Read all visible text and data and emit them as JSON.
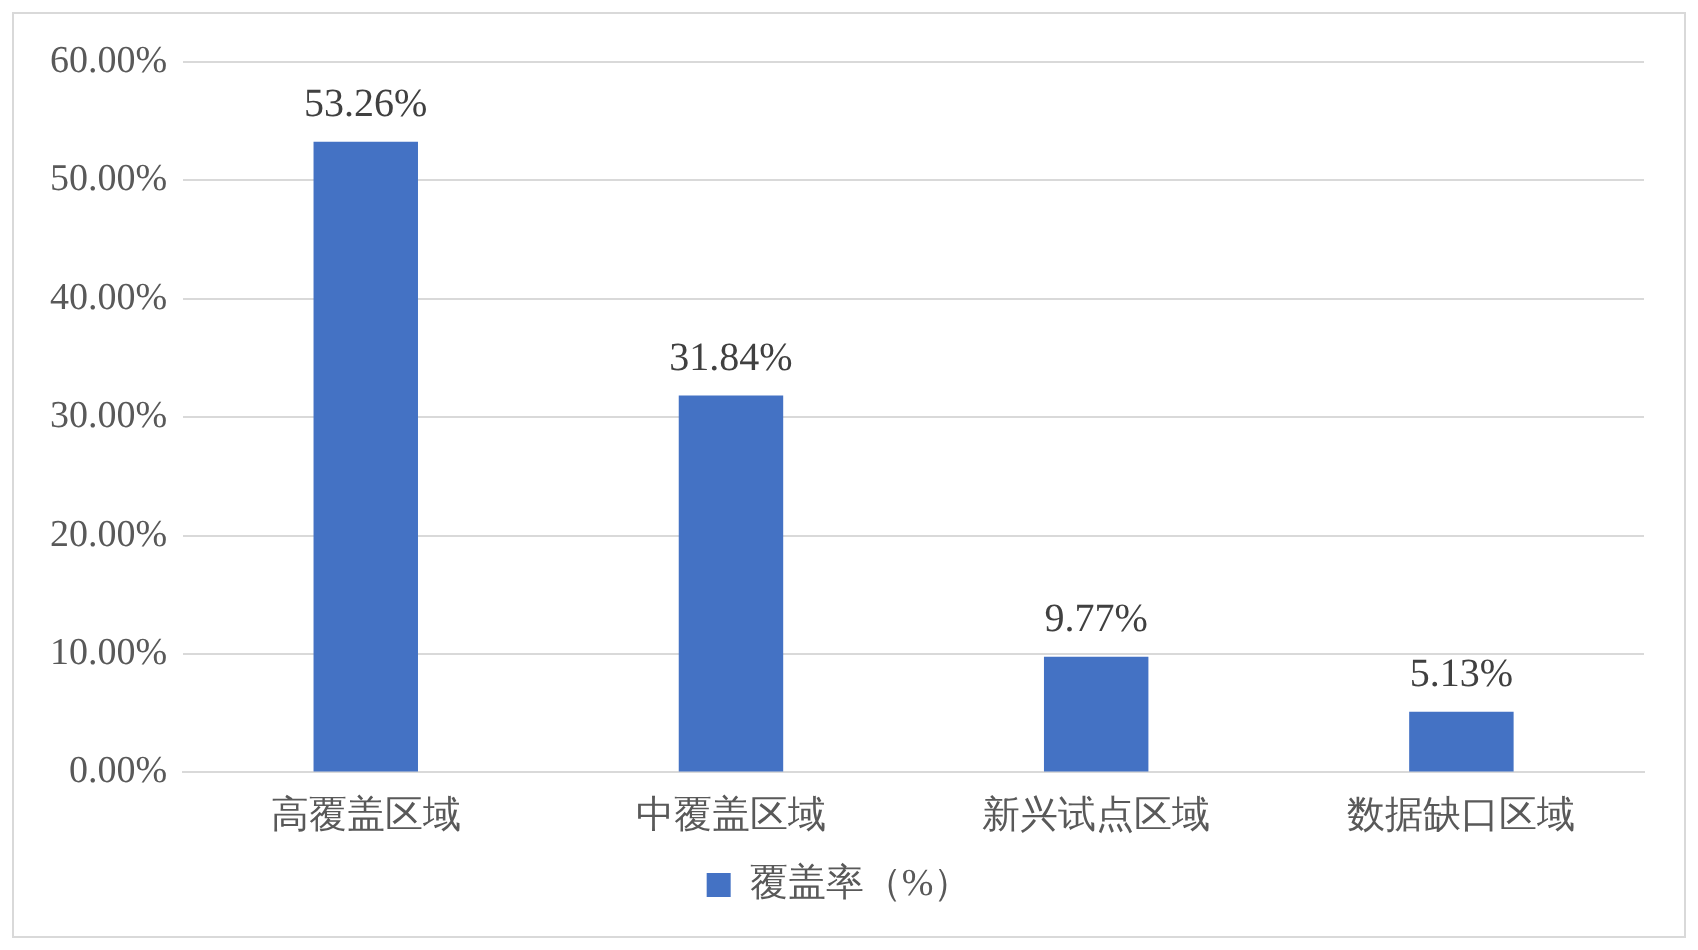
{
  "chart_data": {
    "type": "bar",
    "categories": [
      "高覆盖区域",
      "中覆盖区域",
      "新兴试点区域",
      "数据缺口区域"
    ],
    "series": [
      {
        "name": "覆盖率（%）",
        "color": "#4472c4",
        "values": [
          53.26,
          31.84,
          9.77,
          5.13
        ],
        "value_labels": [
          "53.26%",
          "31.84%",
          "9.77%",
          "5.13%"
        ]
      }
    ],
    "ylim": [
      0,
      60
    ],
    "yticks": [
      {
        "value": 0,
        "label": "0.00%"
      },
      {
        "value": 10,
        "label": "10.00%"
      },
      {
        "value": 20,
        "label": "20.00%"
      },
      {
        "value": 30,
        "label": "30.00%"
      },
      {
        "value": 40,
        "label": "40.00%"
      },
      {
        "value": 50,
        "label": "50.00%"
      },
      {
        "value": 60,
        "label": "60.00%"
      }
    ],
    "grid": "y",
    "legend": "bottom"
  }
}
